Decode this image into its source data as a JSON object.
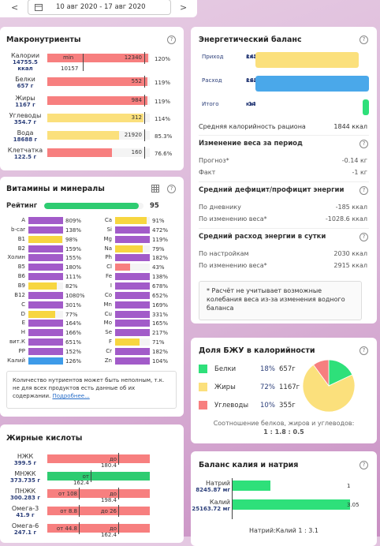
{
  "header": {
    "prev": "<",
    "date_range": "10 авг 2020 - 17 авг 2020",
    "next": ">"
  },
  "macros": {
    "title": "Макронутриенты",
    "help": "?",
    "rows": [
      {
        "name": "Калории",
        "amount": "14755.5 ккал",
        "norm": "12340",
        "min_label": "min",
        "min_value": "10157",
        "color": "#f77f7f",
        "pct": {
          "value": 120,
          "label": "120%"
        }
      },
      {
        "name": "Белки",
        "amount": "657 г",
        "norm": "552",
        "color": "#f77f7f",
        "pct": {
          "value": 119,
          "label": "119%"
        }
      },
      {
        "name": "Жиры",
        "amount": "1167 г",
        "norm": "984",
        "color": "#f77f7f",
        "pct": {
          "value": 119,
          "label": "119%"
        }
      },
      {
        "name": "Углеводы",
        "amount": "354.7 г",
        "norm": "312",
        "color": "#fbe07c",
        "pct": {
          "value": 114,
          "label": "114%"
        }
      },
      {
        "name": "Вода",
        "amount": "18688 г",
        "norm": "21920",
        "color": "#fbe07c",
        "pct": {
          "value": 85.3,
          "label": "85.3%"
        }
      },
      {
        "name": "Клетчатка",
        "amount": "122.5 г",
        "norm": "160",
        "color": "#f77f7f",
        "pct": {
          "value": 76.6,
          "label": "76.6%"
        }
      }
    ]
  },
  "vitamins": {
    "title": "Витамины и минералы",
    "help": "?",
    "rating_label": "Рейтинг",
    "rating": 95,
    "rating_color": "#2ecc71",
    "left": [
      {
        "name": "A",
        "value": 809,
        "label": "809%",
        "color": "#a25bc9"
      },
      {
        "name": "b-car",
        "value": 138,
        "label": "138%",
        "color": "#a25bc9"
      },
      {
        "name": "B1",
        "value": 98,
        "label": "98%",
        "color": "#f7d640"
      },
      {
        "name": "B2",
        "value": 159,
        "label": "159%",
        "color": "#a25bc9"
      },
      {
        "name": "Холин",
        "value": 155,
        "label": "155%",
        "color": "#a25bc9"
      },
      {
        "name": "B5",
        "value": 180,
        "label": "180%",
        "color": "#a25bc9"
      },
      {
        "name": "B6",
        "value": 111,
        "label": "111%",
        "color": "#a25bc9"
      },
      {
        "name": "B9",
        "value": 82,
        "label": "82%",
        "color": "#f7d640"
      },
      {
        "name": "B12",
        "value": 1080,
        "label": "1080%",
        "color": "#a25bc9"
      },
      {
        "name": "C",
        "value": 301,
        "label": "301%",
        "color": "#a25bc9"
      },
      {
        "name": "D",
        "value": 77,
        "label": "77%",
        "color": "#f7d640"
      },
      {
        "name": "E",
        "value": 164,
        "label": "164%",
        "color": "#a25bc9"
      },
      {
        "name": "H",
        "value": 166,
        "label": "166%",
        "color": "#a25bc9"
      },
      {
        "name": "вит.К",
        "value": 651,
        "label": "651%",
        "color": "#a25bc9"
      },
      {
        "name": "PP",
        "value": 152,
        "label": "152%",
        "color": "#a25bc9"
      },
      {
        "name": "Калий",
        "value": 126,
        "label": "126%",
        "color": "#3d9be9"
      }
    ],
    "right": [
      {
        "name": "Ca",
        "value": 91,
        "label": "91%",
        "color": "#f7d640"
      },
      {
        "name": "Si",
        "value": 472,
        "label": "472%",
        "color": "#a25bc9"
      },
      {
        "name": "Mg",
        "value": 119,
        "label": "119%",
        "color": "#a25bc9"
      },
      {
        "name": "Na",
        "value": 79,
        "label": "79%",
        "color": "#f7d640"
      },
      {
        "name": "Ph",
        "value": 182,
        "label": "182%",
        "color": "#a25bc9"
      },
      {
        "name": "Cl",
        "value": 43,
        "label": "43%",
        "color": "#f77f7f"
      },
      {
        "name": "Fe",
        "value": 138,
        "label": "138%",
        "color": "#a25bc9"
      },
      {
        "name": "I",
        "value": 678,
        "label": "678%",
        "color": "#a25bc9"
      },
      {
        "name": "Co",
        "value": 652,
        "label": "652%",
        "color": "#a25bc9"
      },
      {
        "name": "Mn",
        "value": 169,
        "label": "169%",
        "color": "#a25bc9"
      },
      {
        "name": "Cu",
        "value": 331,
        "label": "331%",
        "color": "#a25bc9"
      },
      {
        "name": "Mo",
        "value": 165,
        "label": "165%",
        "color": "#a25bc9"
      },
      {
        "name": "Se",
        "value": 217,
        "label": "217%",
        "color": "#a25bc9"
      },
      {
        "name": "F",
        "value": 71,
        "label": "71%",
        "color": "#f7d640"
      },
      {
        "name": "Cr",
        "value": 182,
        "label": "182%",
        "color": "#a25bc9"
      },
      {
        "name": "Zn",
        "value": 104,
        "label": "104%",
        "color": "#a25bc9"
      }
    ],
    "note": "Количество нутриентов может быть неполным, т.к. не для всех продуктов есть данные об их содержании.",
    "more": "Подробнее..."
  },
  "fats": {
    "title": "Жирные кислоты",
    "rows": [
      {
        "name": "НЖК",
        "amount": "399.5 г",
        "color": "#f77f7f",
        "marks": [
          "до 180.4"
        ]
      },
      {
        "name": "МНЖК",
        "amount": "373.735 г",
        "color": "#2ecc71",
        "marks": [
          "от 162.4"
        ]
      },
      {
        "name": "ПНЖК",
        "amount": "300.283 г",
        "color": "#f77f7f",
        "marks": [
          "от 108",
          "до 198.4"
        ]
      },
      {
        "name": "Омега-3",
        "amount": "41.9 г",
        "color": "#f77f7f",
        "marks": [
          "от 8.8",
          "до 26"
        ]
      },
      {
        "name": "Омега-6",
        "amount": "247.1 г",
        "color": "#f77f7f",
        "marks": [
          "от 44.8",
          "до 162.4"
        ]
      }
    ]
  },
  "energy": {
    "title": "Энергетический баланс",
    "help": "?",
    "bars": [
      {
        "label": "Приход",
        "value": 14756,
        "unit": "ккал",
        "color": "#fbe07c"
      },
      {
        "label": "Расход",
        "value": 16236,
        "unit": "ккал",
        "color": "#4aa8ea"
      },
      {
        "label": "Итого",
        "value": -1480,
        "unit": "ккал",
        "color": "#2ee07a"
      }
    ],
    "avg_label": "Средняя калорийность рациона",
    "avg_value": "1844 ккал",
    "sections": [
      {
        "title": "Изменение веса за период",
        "help": "?",
        "rows": [
          [
            "Прогноз*",
            "-0.14 кг"
          ],
          [
            "Факт",
            "-1 кг"
          ]
        ]
      },
      {
        "title": "Средний дефицит/профицит энергии",
        "help": "?",
        "rows": [
          [
            "По дневнику",
            "-185 ккал"
          ],
          [
            "По изменению веса*",
            "-1028.6 ккал"
          ]
        ]
      },
      {
        "title": "Средний расход энергии в сутки",
        "help": "?",
        "rows": [
          [
            "По настройкам",
            "2030 ккал"
          ],
          [
            "По изменению веса*",
            "2915 ккал"
          ]
        ]
      }
    ],
    "note": "* Расчёт не учитывает возможные колебания веса из-за изменения водного баланса"
  },
  "bju": {
    "title": "Доля БЖУ в калорийности",
    "help": "?",
    "rows": [
      {
        "name": "Белки",
        "value": 18,
        "label": "18%",
        "amount": "657г",
        "color": "#2ee07a"
      },
      {
        "name": "Жиры",
        "value": 72,
        "label": "72%",
        "amount": "1167г",
        "color": "#fbe07c"
      },
      {
        "name": "Углеводы",
        "value": 10,
        "label": "10%",
        "amount": "355г",
        "color": "#f77f7f"
      }
    ],
    "ratio_label": "Соотношение белков, жиров и углеводов:",
    "ratio": "1 : 1.8 : 0.5"
  },
  "kna": {
    "title": "Баланс калия и натрия",
    "help": "?",
    "rows": [
      {
        "name": "Натрий",
        "amount": "8245.87 мг",
        "value": 1,
        "color": "#2ee07a"
      },
      {
        "name": "Калий",
        "amount": "25163.72 мг",
        "value": 3.05,
        "color": "#2ee07a"
      }
    ],
    "ratio_label": "Натрий:Калий 1 : 3.1"
  }
}
